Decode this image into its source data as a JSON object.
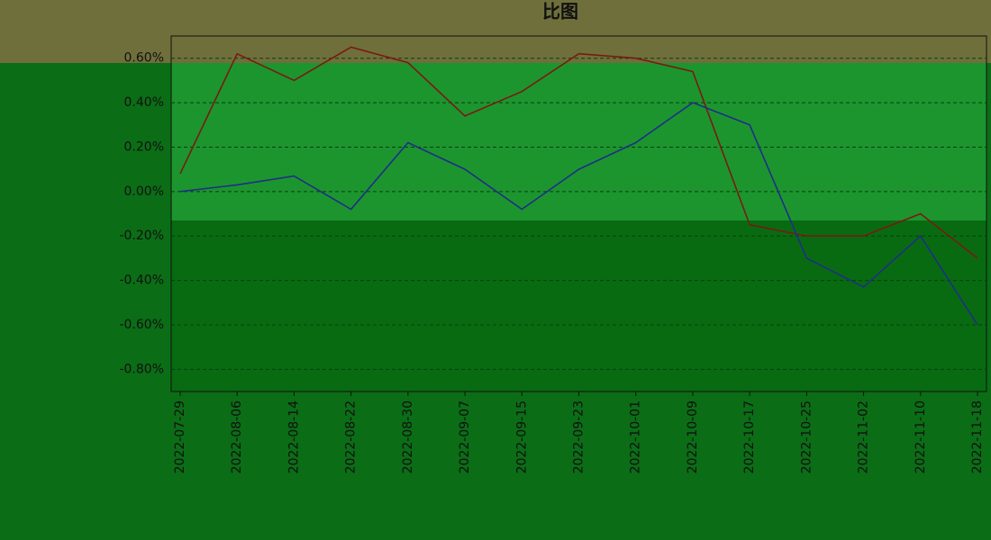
{
  "chart_data": {
    "type": "line",
    "title": "比图",
    "x": [
      "2022-07-29",
      "2022-08-06",
      "2022-08-14",
      "2022-08-22",
      "2022-08-30",
      "2022-09-07",
      "2022-09-15",
      "2022-09-23",
      "2022-10-01",
      "2022-10-09",
      "2022-10-17",
      "2022-10-25",
      "2022-11-02",
      "2022-11-10",
      "2022-11-18"
    ],
    "series": [
      {
        "color": "#7a1a12",
        "values": [
          0.08,
          0.62,
          0.5,
          0.65,
          0.58,
          0.34,
          0.45,
          0.62,
          0.6,
          0.54,
          -0.15,
          -0.2,
          -0.2,
          -0.1,
          -0.3
        ]
      },
      {
        "color": "#1f2f86",
        "values": [
          0.0,
          0.03,
          0.07,
          -0.08,
          0.22,
          0.1,
          -0.08,
          0.1,
          0.22,
          0.4,
          0.3,
          -0.3,
          -0.43,
          -0.2,
          -0.6
        ]
      }
    ],
    "ylim": [
      -0.9,
      0.7
    ],
    "yticks": [
      {
        "value": -0.8,
        "label": "-0.80%"
      },
      {
        "value": -0.6,
        "label": "-0.60%"
      },
      {
        "value": -0.4,
        "label": "-0.40%"
      },
      {
        "value": -0.2,
        "label": "-0.20%"
      },
      {
        "value": 0,
        "label": "0.00%"
      },
      {
        "value": 0.2,
        "label": "0.20%"
      },
      {
        "value": 0.4,
        "label": "0.40%"
      },
      {
        "value": 0.6,
        "label": "0.60%"
      }
    ],
    "grid": true
  }
}
